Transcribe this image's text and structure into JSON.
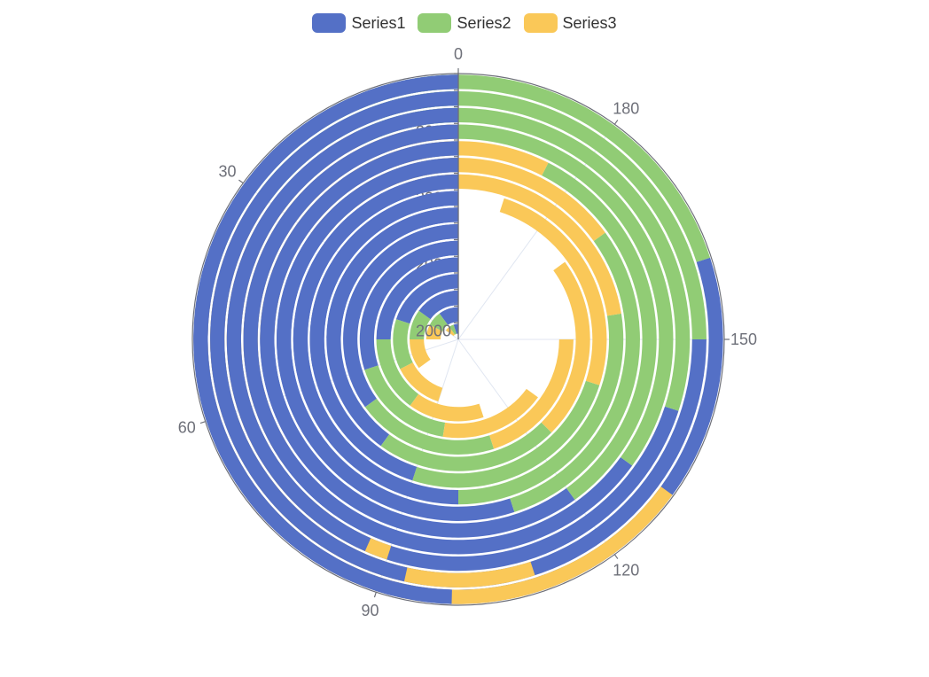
{
  "chart_data": {
    "type": "bar",
    "coordinate": "polar",
    "stacked": true,
    "angle_axis": {
      "min": 0,
      "max": 200,
      "clockwise": true,
      "tick_labels": [
        "0",
        "30",
        "60",
        "90",
        "120",
        "150",
        "180"
      ],
      "tick_values": [
        0,
        30,
        60,
        90,
        120,
        150,
        180
      ]
    },
    "radius_axis": {
      "categories": [
        "2000",
        "2001",
        "2002",
        "2003",
        "2004",
        "2005",
        "2006",
        "2007",
        "2008",
        "2009",
        "2010",
        "2011",
        "2012",
        "2013",
        "2014",
        "2015"
      ],
      "visible_labels": [
        "2000",
        "2004",
        "2008",
        "2012"
      ]
    },
    "legend_position": "top-center",
    "series": [
      {
        "name": "Series1",
        "color": "#5470c6",
        "values": [
          10,
          20,
          30,
          40,
          50,
          60,
          70,
          80,
          90,
          100,
          110,
          120,
          130,
          140,
          150,
          160
        ]
      },
      {
        "name": "Series2",
        "color": "#91cc75",
        "values": [
          10,
          15,
          20,
          25,
          30,
          35,
          40,
          45,
          50,
          55,
          60,
          65,
          70,
          75,
          80,
          85
        ]
      },
      {
        "name": "Series3",
        "color": "#fac858",
        "values": [
          10,
          15,
          20,
          25,
          30,
          35,
          40,
          45,
          50,
          55,
          60,
          65,
          70,
          75,
          80,
          85
        ]
      }
    ]
  }
}
